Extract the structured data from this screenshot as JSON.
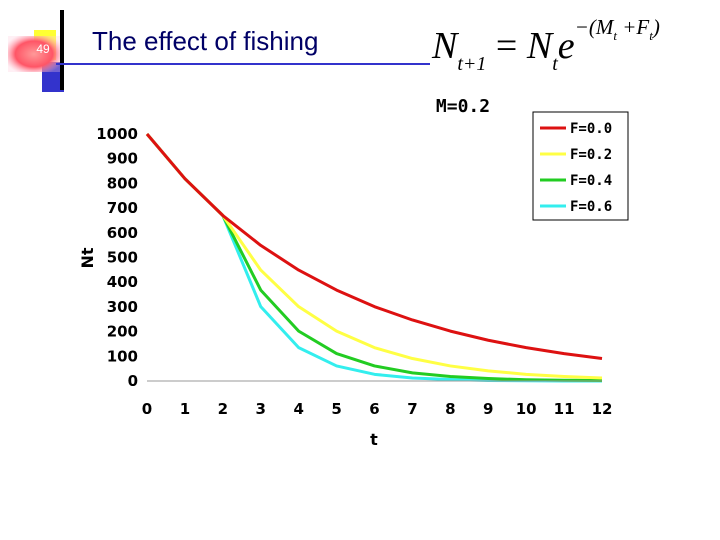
{
  "slide": {
    "number": "49",
    "title": "The effect of fishing",
    "formula": {
      "lhs": "N",
      "lhs_sub": "t+1",
      "rhs": "N",
      "rhs_sub": "t",
      "base": "e",
      "exponent": "−(M",
      "exp_sub1": "t",
      "exp_plus": " +F",
      "exp_sub2": "t",
      "exp_close": ")"
    }
  },
  "chart_data": {
    "type": "line",
    "title": "M=0.2",
    "xlabel": "t",
    "ylabel": "Nt",
    "x": [
      0,
      1,
      2,
      3,
      4,
      5,
      6,
      7,
      8,
      9,
      10,
      11,
      12
    ],
    "xlim": [
      0,
      12
    ],
    "ylim": [
      0,
      1000
    ],
    "yticks": [
      0,
      100,
      200,
      300,
      400,
      500,
      600,
      700,
      800,
      900,
      1000
    ],
    "legend_position": "top-right",
    "grid": false,
    "series": [
      {
        "name": "F=0.0",
        "color": "#dd1111",
        "values": [
          1000,
          819,
          670,
          549,
          449,
          368,
          301,
          247,
          202,
          165,
          135,
          111,
          91
        ]
      },
      {
        "name": "F=0.2",
        "color": "#ffff44",
        "values": [
          1000,
          819,
          670,
          449,
          301,
          202,
          135,
          91,
          61,
          41,
          27,
          18,
          12
        ]
      },
      {
        "name": "F=0.4",
        "color": "#22cc22",
        "values": [
          1000,
          819,
          670,
          368,
          202,
          111,
          61,
          33,
          18,
          10,
          5,
          3,
          2
        ]
      },
      {
        "name": "F=0.6",
        "color": "#33eeee",
        "values": [
          1000,
          819,
          670,
          301,
          135,
          61,
          27,
          12,
          6,
          2,
          1,
          0,
          0
        ]
      }
    ]
  }
}
